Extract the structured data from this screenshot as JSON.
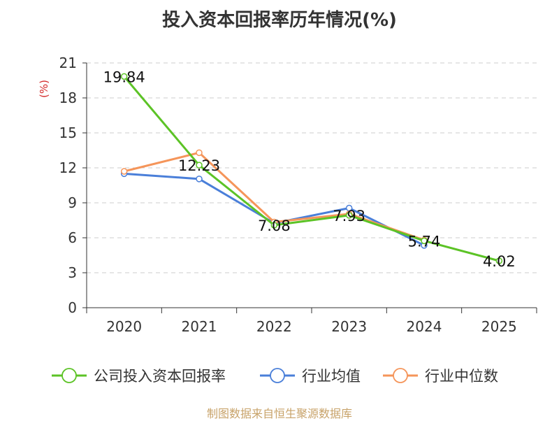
{
  "chart_data": {
    "type": "line",
    "title": "投入资本回报率历年情况(%)",
    "ylabel": "(%)",
    "xlabel": "",
    "categories": [
      "2020",
      "2021",
      "2022",
      "2023",
      "2024",
      "2025"
    ],
    "ylim": [
      0,
      21
    ],
    "yticks": [
      0,
      3,
      6,
      9,
      12,
      15,
      18,
      21
    ],
    "grid": true,
    "legend_position": "bottom",
    "series": [
      {
        "name": "公司投入资本回报率",
        "color": "#5cc326",
        "values": [
          19.84,
          12.23,
          7.08,
          7.93,
          5.74,
          4.02
        ],
        "labels": [
          "19.84",
          "12.23",
          "7.08",
          "7.93",
          "5.74",
          "4.02"
        ]
      },
      {
        "name": "行业均值",
        "color": "#4a7fd9",
        "values": [
          11.5,
          11.05,
          7.25,
          8.55,
          5.35,
          null
        ]
      },
      {
        "name": "行业中位数",
        "color": "#f5955a",
        "values": [
          11.7,
          13.3,
          7.35,
          8.05,
          5.8,
          null
        ]
      }
    ]
  },
  "source": "制图数据来自恒生聚源数据库"
}
